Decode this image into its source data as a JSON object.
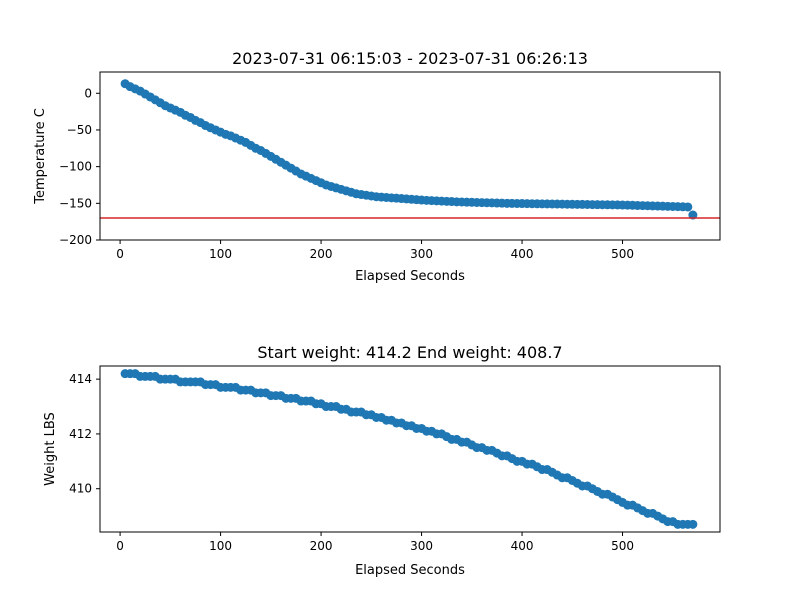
{
  "chart_data": [
    {
      "type": "scatter",
      "title": "2023-07-31 06:15:03 - 2023-07-31 06:26:13",
      "xlabel": "Elapsed Seconds",
      "ylabel": "Temperature C",
      "xlim": [
        -20,
        597
      ],
      "ylim": [
        -200,
        29
      ],
      "xticks": [
        0,
        100,
        200,
        300,
        400,
        500
      ],
      "yticks": [
        0,
        -50,
        -100,
        -150,
        -200
      ],
      "grid": false,
      "point_color": "#1f77b4",
      "reference_line": {
        "y": -170,
        "color": "#d62728"
      },
      "points": [
        [
          5,
          13
        ],
        [
          10,
          9
        ],
        [
          15,
          6
        ],
        [
          20,
          3
        ],
        [
          25,
          -1
        ],
        [
          30,
          -5
        ],
        [
          35,
          -9
        ],
        [
          40,
          -13
        ],
        [
          45,
          -17
        ],
        [
          50,
          -20
        ],
        [
          55,
          -23
        ],
        [
          60,
          -26
        ],
        [
          65,
          -30
        ],
        [
          70,
          -33
        ],
        [
          75,
          -37
        ],
        [
          80,
          -40
        ],
        [
          85,
          -44
        ],
        [
          90,
          -47
        ],
        [
          95,
          -50
        ],
        [
          100,
          -53
        ],
        [
          105,
          -56
        ],
        [
          110,
          -58
        ],
        [
          115,
          -61
        ],
        [
          120,
          -64
        ],
        [
          125,
          -67
        ],
        [
          130,
          -71
        ],
        [
          135,
          -75
        ],
        [
          140,
          -78
        ],
        [
          145,
          -82
        ],
        [
          150,
          -86
        ],
        [
          155,
          -90
        ],
        [
          160,
          -94
        ],
        [
          165,
          -98
        ],
        [
          170,
          -102
        ],
        [
          175,
          -106
        ],
        [
          180,
          -110
        ],
        [
          185,
          -113
        ],
        [
          190,
          -116
        ],
        [
          195,
          -119
        ],
        [
          200,
          -122
        ],
        [
          205,
          -125
        ],
        [
          210,
          -127
        ],
        [
          215,
          -129
        ],
        [
          220,
          -131
        ],
        [
          225,
          -133
        ],
        [
          230,
          -135
        ],
        [
          235,
          -137
        ],
        [
          240,
          -138
        ],
        [
          245,
          -139
        ],
        [
          250,
          -140
        ],
        [
          255,
          -141
        ],
        [
          260,
          -141.5
        ],
        [
          265,
          -142
        ],
        [
          270,
          -142.5
        ],
        [
          275,
          -143
        ],
        [
          280,
          -143.5
        ],
        [
          285,
          -144
        ],
        [
          290,
          -144.5
        ],
        [
          295,
          -145
        ],
        [
          300,
          -145.5
        ],
        [
          305,
          -146
        ],
        [
          310,
          -146.3
        ],
        [
          315,
          -146.6
        ],
        [
          320,
          -147
        ],
        [
          325,
          -147.3
        ],
        [
          330,
          -147.6
        ],
        [
          335,
          -148
        ],
        [
          340,
          -148.2
        ],
        [
          345,
          -148.4
        ],
        [
          350,
          -148.6
        ],
        [
          355,
          -148.8
        ],
        [
          360,
          -149
        ],
        [
          365,
          -149.2
        ],
        [
          370,
          -149.4
        ],
        [
          375,
          -149.6
        ],
        [
          380,
          -149.8
        ],
        [
          385,
          -150
        ],
        [
          390,
          -150.1
        ],
        [
          395,
          -150.2
        ],
        [
          400,
          -150.3
        ],
        [
          405,
          -150.4
        ],
        [
          410,
          -150.5
        ],
        [
          415,
          -150.6
        ],
        [
          420,
          -150.7
        ],
        [
          425,
          -150.8
        ],
        [
          430,
          -150.9
        ],
        [
          435,
          -151
        ],
        [
          440,
          -151.1
        ],
        [
          445,
          -151.2
        ],
        [
          450,
          -151.3
        ],
        [
          455,
          -151.4
        ],
        [
          460,
          -151.5
        ],
        [
          465,
          -151.6
        ],
        [
          470,
          -151.7
        ],
        [
          475,
          -151.8
        ],
        [
          480,
          -151.9
        ],
        [
          485,
          -152
        ],
        [
          490,
          -152.1
        ],
        [
          495,
          -152.2
        ],
        [
          500,
          -152.3
        ],
        [
          505,
          -152.5
        ],
        [
          510,
          -152.7
        ],
        [
          515,
          -152.9
        ],
        [
          520,
          -153.1
        ],
        [
          525,
          -153.3
        ],
        [
          530,
          -153.5
        ],
        [
          535,
          -153.7
        ],
        [
          540,
          -153.9
        ],
        [
          545,
          -154.1
        ],
        [
          550,
          -154.3
        ],
        [
          555,
          -154.5
        ],
        [
          560,
          -154.7
        ],
        [
          565,
          -155
        ],
        [
          570,
          -166
        ]
      ]
    },
    {
      "type": "scatter",
      "title": "Start weight: 414.2 End weight: 408.7",
      "xlabel": "Elapsed Seconds",
      "ylabel": "Weight LBS",
      "xlim": [
        -20,
        597
      ],
      "ylim": [
        408.42,
        414.48
      ],
      "xticks": [
        0,
        100,
        200,
        300,
        400,
        500
      ],
      "yticks": [
        410,
        412,
        414
      ],
      "grid": false,
      "point_color": "#1f77b4",
      "points": [
        [
          5,
          414.2
        ],
        [
          10,
          414.2
        ],
        [
          15,
          414.2
        ],
        [
          20,
          414.1
        ],
        [
          25,
          414.1
        ],
        [
          30,
          414.1
        ],
        [
          35,
          414.1
        ],
        [
          40,
          414
        ],
        [
          45,
          414
        ],
        [
          50,
          414
        ],
        [
          55,
          414
        ],
        [
          60,
          413.9
        ],
        [
          65,
          413.9
        ],
        [
          70,
          413.9
        ],
        [
          75,
          413.9
        ],
        [
          80,
          413.9
        ],
        [
          85,
          413.8
        ],
        [
          90,
          413.8
        ],
        [
          95,
          413.8
        ],
        [
          100,
          413.7
        ],
        [
          105,
          413.7
        ],
        [
          110,
          413.7
        ],
        [
          115,
          413.7
        ],
        [
          120,
          413.6
        ],
        [
          125,
          413.6
        ],
        [
          130,
          413.6
        ],
        [
          135,
          413.5
        ],
        [
          140,
          413.5
        ],
        [
          145,
          413.5
        ],
        [
          150,
          413.4
        ],
        [
          155,
          413.4
        ],
        [
          160,
          413.4
        ],
        [
          165,
          413.3
        ],
        [
          170,
          413.3
        ],
        [
          175,
          413.3
        ],
        [
          180,
          413.2
        ],
        [
          185,
          413.2
        ],
        [
          190,
          413.2
        ],
        [
          195,
          413.1
        ],
        [
          200,
          413.1
        ],
        [
          205,
          413
        ],
        [
          210,
          413
        ],
        [
          215,
          413
        ],
        [
          220,
          412.9
        ],
        [
          225,
          412.9
        ],
        [
          230,
          412.8
        ],
        [
          235,
          412.8
        ],
        [
          240,
          412.8
        ],
        [
          245,
          412.7
        ],
        [
          250,
          412.7
        ],
        [
          255,
          412.6
        ],
        [
          260,
          412.6
        ],
        [
          265,
          412.5
        ],
        [
          270,
          412.5
        ],
        [
          275,
          412.4
        ],
        [
          280,
          412.4
        ],
        [
          285,
          412.3
        ],
        [
          290,
          412.3
        ],
        [
          295,
          412.2
        ],
        [
          300,
          412.2
        ],
        [
          305,
          412.1
        ],
        [
          310,
          412.1
        ],
        [
          315,
          412
        ],
        [
          320,
          412
        ],
        [
          325,
          411.9
        ],
        [
          330,
          411.8
        ],
        [
          335,
          411.8
        ],
        [
          340,
          411.7
        ],
        [
          345,
          411.7
        ],
        [
          350,
          411.6
        ],
        [
          355,
          411.5
        ],
        [
          360,
          411.5
        ],
        [
          365,
          411.4
        ],
        [
          370,
          411.4
        ],
        [
          375,
          411.3
        ],
        [
          380,
          411.2
        ],
        [
          385,
          411.2
        ],
        [
          390,
          411.1
        ],
        [
          395,
          411
        ],
        [
          400,
          411
        ],
        [
          405,
          410.9
        ],
        [
          410,
          410.9
        ],
        [
          415,
          410.8
        ],
        [
          420,
          410.7
        ],
        [
          425,
          410.7
        ],
        [
          430,
          410.6
        ],
        [
          435,
          410.5
        ],
        [
          440,
          410.4
        ],
        [
          445,
          410.4
        ],
        [
          450,
          410.3
        ],
        [
          455,
          410.2
        ],
        [
          460,
          410.1
        ],
        [
          465,
          410.1
        ],
        [
          470,
          410
        ],
        [
          475,
          409.9
        ],
        [
          480,
          409.8
        ],
        [
          485,
          409.8
        ],
        [
          490,
          409.7
        ],
        [
          495,
          409.6
        ],
        [
          500,
          409.5
        ],
        [
          505,
          409.4
        ],
        [
          510,
          409.4
        ],
        [
          515,
          409.3
        ],
        [
          520,
          409.2
        ],
        [
          525,
          409.1
        ],
        [
          530,
          409.1
        ],
        [
          535,
          409
        ],
        [
          540,
          408.9
        ],
        [
          545,
          408.8
        ],
        [
          550,
          408.8
        ],
        [
          555,
          408.7
        ],
        [
          560,
          408.7
        ],
        [
          565,
          408.7
        ],
        [
          570,
          408.7
        ]
      ]
    }
  ]
}
